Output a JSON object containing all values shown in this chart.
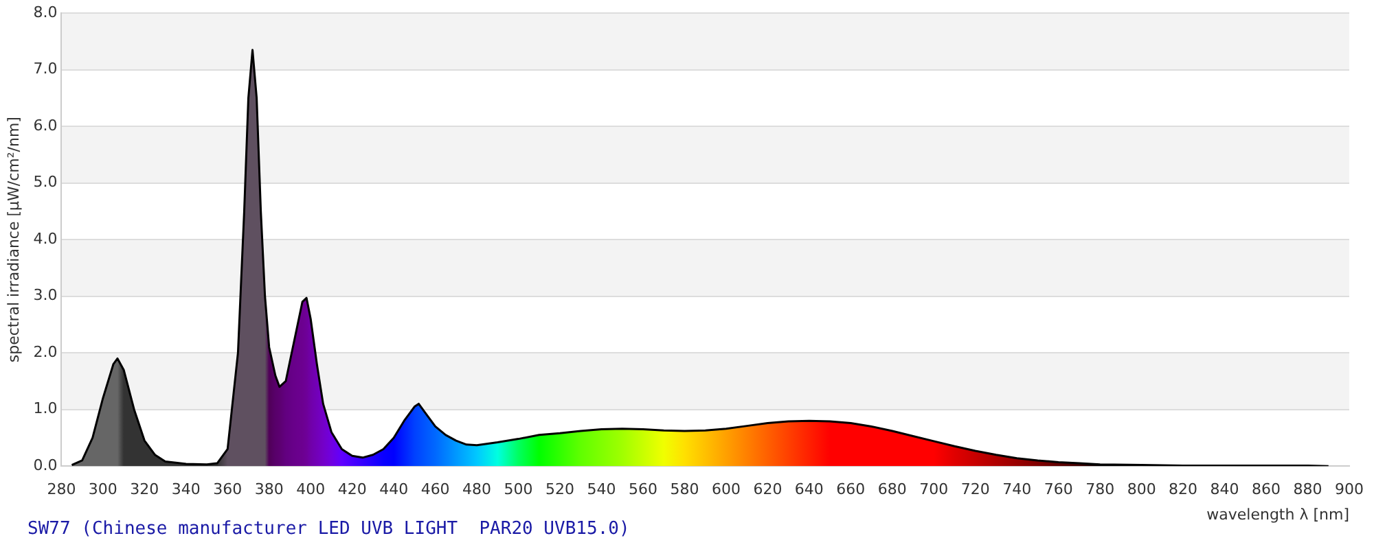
{
  "chart_data": {
    "type": "area",
    "xlabel": "wavelength λ [nm]",
    "ylabel": "spectral irradiance [µW/cm²/nm]",
    "annotations": [
      "SW77 (Chinese manufacturer LED UVB LIGHT  PAR20 UVB15.0)"
    ],
    "x": [
      285,
      290,
      295,
      300,
      305,
      307,
      310,
      315,
      320,
      325,
      330,
      340,
      350,
      355,
      360,
      365,
      368,
      370,
      372,
      374,
      376,
      378,
      380,
      383,
      385,
      388,
      392,
      396,
      398,
      400,
      403,
      406,
      410,
      415,
      420,
      425,
      430,
      435,
      440,
      445,
      450,
      452,
      455,
      460,
      465,
      470,
      475,
      480,
      490,
      500,
      510,
      520,
      530,
      540,
      550,
      560,
      570,
      580,
      590,
      600,
      610,
      620,
      630,
      640,
      650,
      660,
      670,
      680,
      690,
      700,
      710,
      720,
      730,
      740,
      750,
      760,
      770,
      780,
      800,
      820,
      850,
      880,
      890
    ],
    "series": [
      {
        "values": [
          0.02,
          0.1,
          0.5,
          1.2,
          1.8,
          1.9,
          1.7,
          1.0,
          0.45,
          0.2,
          0.08,
          0.04,
          0.03,
          0.05,
          0.3,
          2.0,
          4.5,
          6.5,
          7.35,
          6.5,
          4.5,
          3.0,
          2.1,
          1.6,
          1.4,
          1.5,
          2.2,
          2.9,
          2.97,
          2.6,
          1.8,
          1.1,
          0.6,
          0.3,
          0.18,
          0.15,
          0.2,
          0.3,
          0.5,
          0.8,
          1.05,
          1.1,
          0.95,
          0.7,
          0.55,
          0.45,
          0.38,
          0.37,
          0.42,
          0.48,
          0.55,
          0.58,
          0.62,
          0.65,
          0.66,
          0.65,
          0.63,
          0.62,
          0.63,
          0.66,
          0.71,
          0.76,
          0.79,
          0.8,
          0.79,
          0.76,
          0.7,
          0.62,
          0.53,
          0.44,
          0.35,
          0.27,
          0.2,
          0.14,
          0.1,
          0.07,
          0.05,
          0.03,
          0.02,
          0.01,
          0.01,
          0.01,
          0
        ],
        "colors": [
          "#666666",
          "#666666",
          "#666666",
          "#666666",
          "#666666",
          "#666666",
          "#333333",
          "#333333",
          "#333333",
          "#333333",
          "#333333",
          "#333333",
          "#333333",
          "#333333",
          "#5f5060",
          "#5f5060",
          "#5f5060",
          "#5f5060",
          "#5f5060",
          "#5f5060",
          "#5f5060",
          "#5f5060",
          "#500058",
          "#58006a",
          "#5c0070",
          "#620080",
          "#68008a",
          "#6c0090",
          "#6e0098",
          "#7000a8",
          "#7200b8",
          "#7400c8",
          "#7000e0",
          "#6000ff",
          "#4a00ff",
          "#3500ff",
          "#2000ff",
          "#0a00ff",
          "#0000ff",
          "#0020ff",
          "#0040ff",
          "#0048ff",
          "#0055ff",
          "#0068ff",
          "#0080ff",
          "#0098ff",
          "#00b0ff",
          "#00c8ff",
          "#00ffe0",
          "#00ff60",
          "#00ff00",
          "#30ff00",
          "#60ff00",
          "#80ff00",
          "#a0ff00",
          "#c8ff00",
          "#f0ff00",
          "#ffe000",
          "#ffc000",
          "#ffa000",
          "#ff8000",
          "#ff6000",
          "#ff4000",
          "#ff2000",
          "#ff0000",
          "#ff0000",
          "#ff0000",
          "#ff0000",
          "#ff0000",
          "#ff0000",
          "#e00000",
          "#c80000",
          "#b00000",
          "#980000",
          "#800000",
          "#600000",
          "#400000",
          "#000000",
          "#000000",
          "#000000",
          "#000000",
          "#000000",
          "#000000"
        ]
      }
    ],
    "xlim": [
      280,
      900
    ],
    "xticks": [
      280,
      300,
      320,
      340,
      360,
      380,
      400,
      420,
      440,
      460,
      480,
      500,
      520,
      540,
      560,
      580,
      600,
      620,
      640,
      660,
      680,
      700,
      720,
      740,
      760,
      780,
      800,
      820,
      840,
      860,
      880,
      900
    ],
    "ylim": [
      0,
      8
    ],
    "yticks": [
      {
        "value": 0,
        "label": "0.0"
      },
      {
        "value": 1,
        "label": "1.0"
      },
      {
        "value": 2,
        "label": "2.0"
      },
      {
        "value": 3,
        "label": "3.0"
      },
      {
        "value": 4,
        "label": "4.0"
      },
      {
        "value": 5,
        "label": "5.0"
      },
      {
        "value": 6,
        "label": "6.0"
      },
      {
        "value": 7,
        "label": "7.0"
      },
      {
        "value": 8,
        "label": "8.0"
      }
    ],
    "grid": "y",
    "legend": false
  }
}
